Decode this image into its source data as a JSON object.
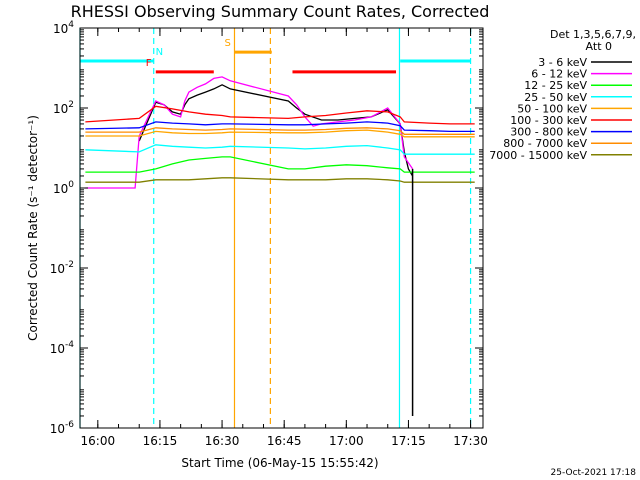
{
  "chart_data": {
    "type": "line",
    "title": "RHESSI Observing Summary Count Rates, Corrected",
    "xlabel": "Start Time (06-May-15 15:55:42)",
    "ylabel": "Corrected Count Rate (s⁻¹ detector⁻¹)",
    "y_scale": "log",
    "ylim": [
      1e-06,
      10000.0
    ],
    "xlim": [
      "15:55:42",
      "17:33:00"
    ],
    "x_ticks": [
      "16:00",
      "16:15",
      "16:30",
      "16:45",
      "17:00",
      "17:15",
      "17:30"
    ],
    "y_ticks": [
      {
        "value": 10000.0,
        "base": "10",
        "exp": "4"
      },
      {
        "value": 100.0,
        "base": "10",
        "exp": "2"
      },
      {
        "value": 1,
        "base": "10",
        "exp": "0"
      },
      {
        "value": 0.01,
        "base": "10",
        "exp": "-2"
      },
      {
        "value": 0.0001,
        "base": "10",
        "exp": "-4"
      },
      {
        "value": 1e-06,
        "base": "10",
        "exp": "-6"
      }
    ],
    "legend_header": [
      "Det 1,3,5,6,7,9,",
      "Att 0"
    ],
    "legend_position": "right",
    "series": [
      {
        "name": "3 - 6 keV",
        "color": "#000000",
        "x": [
          "16:10",
          "16:14",
          "16:16",
          "16:18",
          "16:20",
          "16:21",
          "16:22",
          "16:24",
          "16:26",
          "16:28",
          "16:30",
          "16:32",
          "16:46",
          "16:48",
          "16:50",
          "16:54",
          "16:58",
          "17:02",
          "17:06",
          "17:10",
          "17:13",
          "17:14",
          "17:15",
          "17:16"
        ],
        "y": [
          15,
          140,
          120,
          80,
          70,
          120,
          170,
          210,
          250,
          300,
          380,
          300,
          150,
          100,
          70,
          50,
          50,
          55,
          60,
          90,
          40,
          8,
          3,
          2
        ]
      },
      {
        "name": "6 - 12 keV",
        "color": "#ff00ff",
        "x": [
          "15:57",
          "16:09",
          "16:10",
          "16:14",
          "16:16",
          "16:18",
          "16:20",
          "16:21",
          "16:22",
          "16:24",
          "16:26",
          "16:28",
          "16:30",
          "16:32",
          "16:46",
          "16:48",
          "16:50",
          "16:52",
          "16:54",
          "16:58",
          "17:02",
          "17:06",
          "17:10",
          "17:13",
          "17:14",
          "17:16"
        ],
        "y": [
          1,
          1,
          20,
          150,
          120,
          70,
          60,
          150,
          250,
          330,
          400,
          550,
          600,
          480,
          200,
          120,
          60,
          35,
          40,
          45,
          50,
          60,
          100,
          40,
          6,
          3
        ]
      },
      {
        "name": "12 - 25 keV",
        "color": "#00ff00",
        "x": [
          "15:57",
          "16:10",
          "16:14",
          "16:18",
          "16:22",
          "16:26",
          "16:30",
          "16:32",
          "16:46",
          "16:50",
          "16:55",
          "17:00",
          "17:05",
          "17:10",
          "17:13",
          "17:14",
          "17:20",
          "17:25",
          "17:31"
        ],
        "y": [
          2.5,
          2.5,
          3,
          4,
          5,
          5.5,
          6,
          6,
          3,
          3,
          3.5,
          3.8,
          3.6,
          3.2,
          3,
          2.5,
          2.5,
          2.5,
          2.5
        ]
      },
      {
        "name": "25 - 50 keV",
        "color": "#00ffff",
        "x": [
          "15:57",
          "16:10",
          "16:14",
          "16:18",
          "16:22",
          "16:26",
          "16:30",
          "16:32",
          "16:46",
          "16:50",
          "16:55",
          "17:00",
          "17:05",
          "17:10",
          "17:13",
          "17:14",
          "17:20",
          "17:25",
          "17:31"
        ],
        "y": [
          9,
          8,
          12,
          11,
          10.5,
          10,
          10.5,
          11,
          10,
          9.5,
          10,
          11,
          11.5,
          10,
          9,
          7,
          7,
          7,
          7
        ]
      },
      {
        "name": "50 - 100 keV",
        "color": "#ffa500",
        "x": [
          "15:57",
          "16:10",
          "16:14",
          "16:18",
          "16:22",
          "16:26",
          "16:30",
          "16:32",
          "16:46",
          "16:50",
          "16:55",
          "17:00",
          "17:05",
          "17:10",
          "17:13",
          "17:14",
          "17:20",
          "17:25",
          "17:31"
        ],
        "y": [
          20,
          20,
          26,
          24,
          23,
          23,
          24,
          25,
          24,
          24,
          25,
          27,
          28,
          25,
          22,
          19,
          19,
          19,
          19
        ]
      },
      {
        "name": "100 - 300 keV",
        "color": "#ff0000",
        "x": [
          "15:57",
          "16:10",
          "16:14",
          "16:18",
          "16:22",
          "16:26",
          "16:30",
          "16:32",
          "16:46",
          "16:50",
          "16:55",
          "17:00",
          "17:05",
          "17:10",
          "17:13",
          "17:14",
          "17:20",
          "17:25",
          "17:31"
        ],
        "y": [
          45,
          55,
          110,
          95,
          80,
          70,
          65,
          60,
          55,
          60,
          65,
          75,
          85,
          80,
          60,
          45,
          42,
          40,
          40
        ]
      },
      {
        "name": "300 - 800 keV",
        "color": "#0000ff",
        "x": [
          "15:57",
          "16:10",
          "16:14",
          "16:18",
          "16:22",
          "16:26",
          "16:30",
          "16:32",
          "16:46",
          "16:50",
          "16:55",
          "17:00",
          "17:05",
          "17:10",
          "17:13",
          "17:14",
          "17:20",
          "17:25",
          "17:31"
        ],
        "y": [
          30,
          32,
          45,
          42,
          40,
          38,
          40,
          40,
          38,
          38,
          40,
          42,
          45,
          42,
          36,
          28,
          27,
          26,
          26
        ]
      },
      {
        "name": "800 - 7000 keV",
        "color": "#ff8c00",
        "x": [
          "15:57",
          "16:10",
          "16:14",
          "16:18",
          "16:22",
          "16:26",
          "16:30",
          "16:32",
          "16:46",
          "16:50",
          "16:55",
          "17:00",
          "17:05",
          "17:10",
          "17:13",
          "17:14",
          "17:20",
          "17:25",
          "17:31"
        ],
        "y": [
          25,
          25,
          32,
          30,
          29,
          28,
          29,
          30,
          28,
          28,
          29,
          31,
          32,
          30,
          27,
          22,
          22,
          22,
          22
        ]
      },
      {
        "name": "7000 - 15000 keV",
        "color": "#808000",
        "x": [
          "15:57",
          "16:10",
          "16:14",
          "16:18",
          "16:22",
          "16:26",
          "16:30",
          "16:32",
          "16:46",
          "16:50",
          "16:55",
          "17:00",
          "17:05",
          "17:10",
          "17:13",
          "17:14",
          "17:20",
          "17:25",
          "17:31"
        ],
        "y": [
          1.4,
          1.4,
          1.6,
          1.6,
          1.6,
          1.7,
          1.8,
          1.8,
          1.6,
          1.6,
          1.6,
          1.7,
          1.7,
          1.6,
          1.5,
          1.4,
          1.4,
          1.4,
          1.4
        ]
      }
    ],
    "black_spike": {
      "x": "17:16",
      "y_from": 3,
      "y_to": 2e-06,
      "color": "#000000"
    },
    "vertical_markers": [
      {
        "time": "15:55:42",
        "color": "#00ffff",
        "style": "solid"
      },
      {
        "time": "16:13:30",
        "color": "#00ffff",
        "style": "dashed"
      },
      {
        "time": "16:33:00",
        "color": "#ffa500",
        "style": "solid"
      },
      {
        "time": "16:41:40",
        "color": "#ffa500",
        "style": "dashed"
      },
      {
        "time": "17:12:50",
        "color": "#00ffff",
        "style": "solid"
      },
      {
        "time": "17:30:00",
        "color": "#00ffff",
        "style": "dashed"
      }
    ],
    "status_bars": [
      {
        "label": "",
        "color": "#00ffff",
        "start": "15:55:42",
        "end": "16:12:30",
        "y": 1500
      },
      {
        "label": "N",
        "color": "#00ffff",
        "start": "16:12:30",
        "end": "16:13:30",
        "y": 1500
      },
      {
        "label": "F",
        "color": "#ff0000",
        "start": "16:14:00",
        "end": "16:28:00",
        "y": 800
      },
      {
        "label": "S",
        "color": "#ffa500",
        "start": "16:33:00",
        "end": "16:42:00",
        "y": 2500
      },
      {
        "label": "",
        "color": "#ff0000",
        "start": "16:47:00",
        "end": "17:12:00",
        "y": 800
      },
      {
        "label": "",
        "color": "#00ffff",
        "start": "17:13:00",
        "end": "17:30:00",
        "y": 1500
      }
    ],
    "footer_date": "25-Oct-2021 17:18"
  }
}
